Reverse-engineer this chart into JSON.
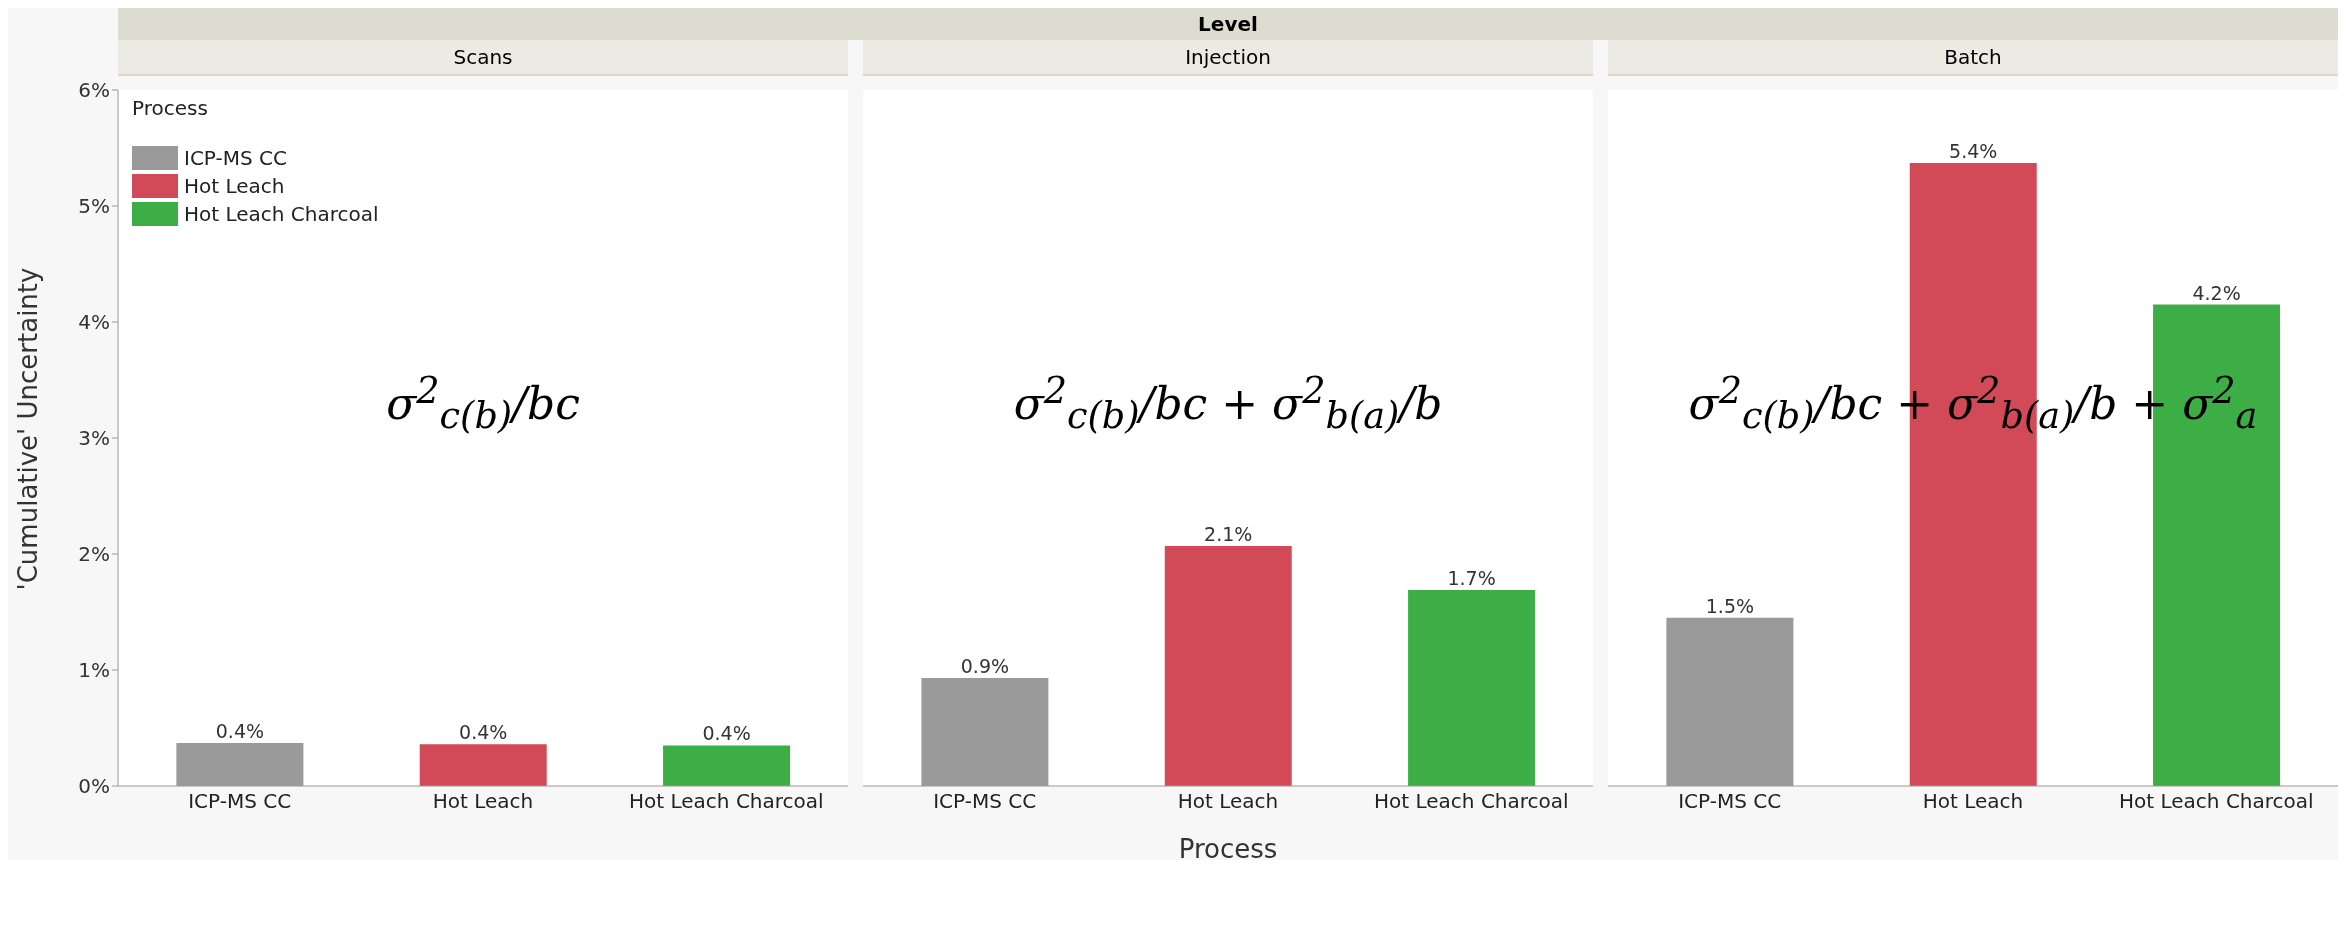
{
  "chart_data": [
    {
      "type": "bar",
      "stacked": true,
      "subtitle": "Scans",
      "ylabel": "'Cumulative' Uncertainty",
      "legend": "top left",
      "legend_title": "Process",
      "categories": [
        "ICP-MS CC",
        "Hot Leach",
        "Hot Leach Charcoal"
      ],
      "series": [
        {
          "name": "ICP-MS CC",
          "color": "#9a9a9a",
          "values": [
            0.37,
            null,
            null
          ],
          "value_labels": [
            "0.4%",
            null,
            null
          ]
        },
        {
          "name": "Hot Leach",
          "color": "#d24a58",
          "values": [
            null,
            0.36,
            null
          ],
          "value_labels": [
            null,
            "0.4%",
            null
          ]
        },
        {
          "name": "Hot Leach Charcoal",
          "color": "#3dae46",
          "values": [
            null,
            null,
            0.35
          ],
          "value_labels": [
            null,
            null,
            "0.4%"
          ]
        }
      ],
      "ylim": [
        0,
        6
      ],
      "yticks": [
        {
          "value": 0,
          "label": "0%"
        },
        {
          "value": 1,
          "label": "1%"
        },
        {
          "value": 2,
          "label": "2%"
        },
        {
          "value": 3,
          "label": "3%"
        },
        {
          "value": 4,
          "label": "4%"
        },
        {
          "value": 5,
          "label": "5%"
        },
        {
          "value": 6,
          "label": "6%"
        }
      ],
      "annotations": [
        "σ$^{2}$$_{c(b)}$/bc"
      ]
    },
    {
      "type": "bar",
      "stacked": true,
      "title": "Level",
      "subtitle": "Injection",
      "xlabel": "Process",
      "tick_labels": "x",
      "categories": [
        "ICP-MS CC",
        "Hot Leach",
        "Hot Leach Charcoal"
      ],
      "series": [
        {
          "color": "#9a9a9a",
          "values": [
            0.93,
            null,
            null
          ],
          "value_labels": [
            "0.9%",
            null,
            null
          ]
        },
        {
          "color": "#d24a58",
          "values": [
            null,
            2.07,
            null
          ],
          "value_labels": [
            null,
            "2.1%",
            null
          ]
        },
        {
          "color": "#3dae46",
          "values": [
            null,
            null,
            1.69
          ],
          "value_labels": [
            null,
            null,
            "1.7%"
          ]
        }
      ],
      "ylim": [
        0,
        6
      ],
      "annotations": [
        "σ$^{2}$$_{c(b)}$/bc + σ$^{2}$$_{b(a)}$/b"
      ]
    },
    {
      "type": "bar",
      "stacked": true,
      "subtitle": "Batch",
      "tick_labels": "x",
      "categories": [
        "ICP-MS CC",
        "Hot Leach",
        "Hot Leach Charcoal"
      ],
      "series": [
        {
          "color": "#9a9a9a",
          "values": [
            1.45,
            null,
            null
          ],
          "value_labels": [
            "1.5%",
            null,
            null
          ]
        },
        {
          "color": "#d24a58",
          "values": [
            null,
            5.37,
            null
          ],
          "value_labels": [
            null,
            "5.4%",
            null
          ]
        },
        {
          "color": "#3dae46",
          "values": [
            null,
            null,
            4.15
          ],
          "value_labels": [
            null,
            null,
            "4.2%"
          ]
        }
      ],
      "ylim": [
        0,
        6
      ],
      "annotations": [
        "σ$^{2}$$_{c(b)}$/bc + σ$^{2}$$_{b(a)}$/b + σ$^{2}$$_{a}$"
      ]
    }
  ]
}
